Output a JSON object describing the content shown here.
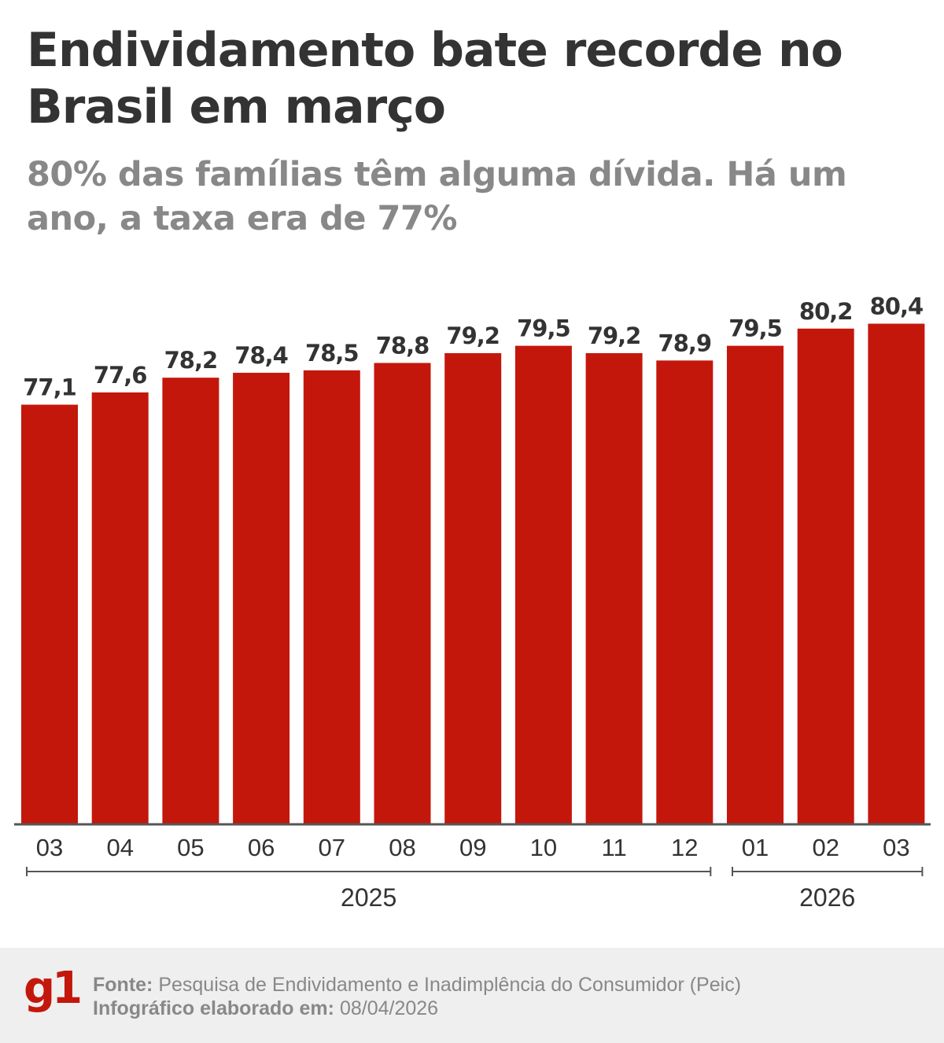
{
  "title": "Endividamento bate recorde no Brasil em março",
  "subtitle": "80% das famílias têm alguma dívida. Há um ano, a taxa era de 77%",
  "chart_data": {
    "type": "bar",
    "categories": [
      "03",
      "04",
      "05",
      "06",
      "07",
      "08",
      "09",
      "10",
      "11",
      "12",
      "01",
      "02",
      "03"
    ],
    "values": [
      77.1,
      77.6,
      78.2,
      78.4,
      78.5,
      78.8,
      79.2,
      79.5,
      79.2,
      78.9,
      79.5,
      80.2,
      80.4
    ],
    "data_labels": [
      "77,1",
      "77,6",
      "78,2",
      "78,4",
      "78,5",
      "78,8",
      "79,2",
      "79,5",
      "79,2",
      "78,9",
      "79,5",
      "80,2",
      "80,4"
    ],
    "year_groups": [
      {
        "label": "2025",
        "start": 0,
        "end": 9
      },
      {
        "label": "2026",
        "start": 10,
        "end": 12
      }
    ],
    "ylim": [
      60,
      81
    ],
    "grid": false,
    "bar_color": "#c4170c",
    "title": "",
    "xlabel": "",
    "ylabel": ""
  },
  "footer": {
    "logo": "g1",
    "source_label": "Fonte:",
    "source_text": "Pesquisa de Endividamento e Inadimplência do Consumidor (Peic)",
    "date_label": "Infográfico elaborado em:",
    "date_text": "08/04/2026"
  }
}
